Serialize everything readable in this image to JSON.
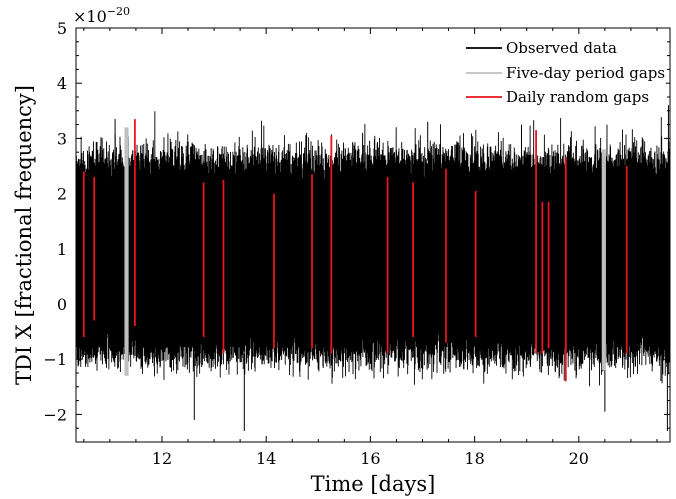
{
  "chart_data": {
    "type": "line",
    "title": "",
    "xlabel": "Time [days]",
    "ylabel": "TDI X [fractional frequency]",
    "y_scale_label": "×10",
    "y_scale_exponent": "−20",
    "xlim": [
      10.35,
      21.75
    ],
    "ylim": [
      -2.5,
      5
    ],
    "x_ticks": [
      12,
      14,
      16,
      18,
      20
    ],
    "x_tick_labels": [
      "12",
      "14",
      "16",
      "18",
      "20"
    ],
    "y_ticks": [
      -2,
      -1,
      0,
      1,
      2,
      3,
      4,
      5
    ],
    "y_tick_labels": [
      "−2",
      "−1",
      "0",
      "1",
      "2",
      "3",
      "4",
      "5"
    ],
    "grid": false,
    "legend_position": "top-right",
    "noise_band": {
      "center": 0.8,
      "typical_min": -0.9,
      "typical_max": 2.6,
      "extreme_min": -2.3,
      "extreme_max": 3.6
    },
    "series": [
      {
        "name": "Observed data",
        "color": "#000000",
        "description_range": [
          10.35,
          21.75
        ]
      },
      {
        "name": "Five-day period gaps",
        "color": "#c0c0c0",
        "gaps": [
          {
            "start": 11.28,
            "end": 11.36,
            "min": -1.3,
            "max": 3.2
          },
          {
            "start": 20.44,
            "end": 20.52,
            "min": -1.2,
            "max": 2.8
          }
        ]
      },
      {
        "name": "Daily random gaps",
        "color": "#e8141b",
        "gaps": [
          {
            "x": 10.5,
            "min": -0.6,
            "max": 2.4
          },
          {
            "x": 10.7,
            "min": -0.3,
            "max": 2.3
          },
          {
            "x": 11.48,
            "min": -0.4,
            "max": 3.35
          },
          {
            "x": 12.8,
            "min": -0.6,
            "max": 2.2
          },
          {
            "x": 13.18,
            "min": -0.9,
            "max": 2.25
          },
          {
            "x": 14.15,
            "min": -0.8,
            "max": 2.0
          },
          {
            "x": 14.88,
            "min": -0.8,
            "max": 2.35
          },
          {
            "x": 15.25,
            "min": -0.9,
            "max": 3.05
          },
          {
            "x": 16.33,
            "min": -0.9,
            "max": 2.3
          },
          {
            "x": 16.82,
            "min": -0.6,
            "max": 2.2
          },
          {
            "x": 17.45,
            "min": -0.7,
            "max": 2.45
          },
          {
            "x": 18.02,
            "min": -0.6,
            "max": 2.05
          },
          {
            "x": 19.18,
            "min": -0.9,
            "max": 3.15
          },
          {
            "x": 19.3,
            "min": -0.9,
            "max": 1.85
          },
          {
            "x": 19.42,
            "min": -0.8,
            "max": 1.85
          },
          {
            "x": 19.75,
            "min": -1.4,
            "max": 2.65
          },
          {
            "x": 20.92,
            "min": -0.9,
            "max": 2.5
          }
        ]
      }
    ]
  }
}
